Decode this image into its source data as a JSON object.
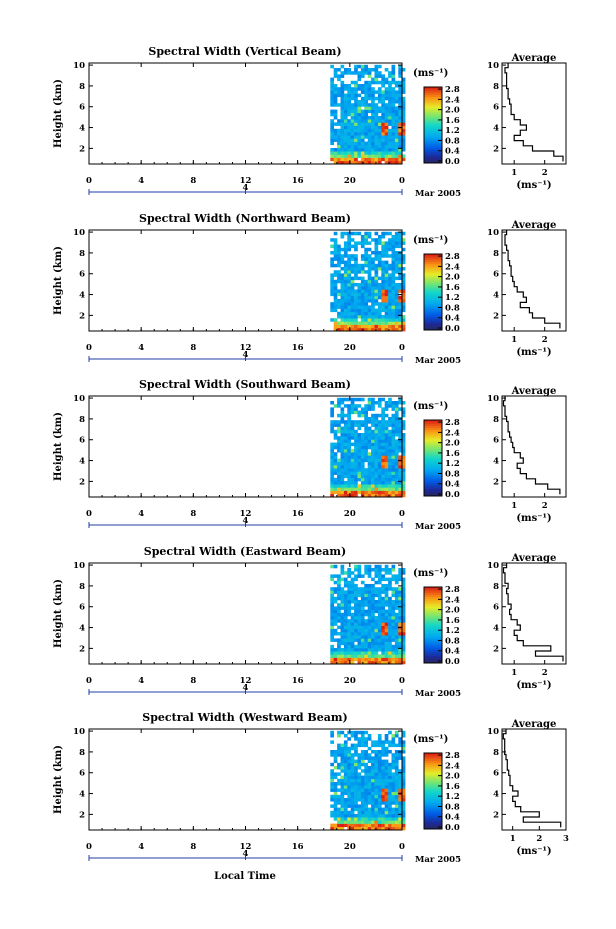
{
  "figure": {
    "xlabel": "Local Time",
    "date_label": "Mar 2005",
    "day_marker": "4",
    "x_ticks": [
      "0",
      "4",
      "8",
      "12",
      "16",
      "20",
      "0"
    ],
    "ylabel": "Height (km)",
    "y_ticks": [
      "2",
      "4",
      "6",
      "8",
      "10"
    ],
    "colorbar_unit": "(ms⁻¹)",
    "colorbar_ticks": [
      "0.0",
      "0.4",
      "0.8",
      "1.2",
      "1.6",
      "2.0",
      "2.4",
      "2.8"
    ],
    "profile_title": "Average",
    "profile_xlabel": "(ms⁻¹)",
    "colors": {
      "axis": "#000000",
      "day_marker": "#1f3fa8",
      "missing": "#ffffff"
    }
  },
  "chart_data": [
    {
      "type": "heatmap",
      "title": "Spectral Width (Vertical Beam)",
      "x_range_hours": [
        0,
        24
      ],
      "data_start_hour": 18.5,
      "y_range_km": [
        0.5,
        10.2
      ],
      "color_range": [
        0,
        2.8
      ],
      "profile": {
        "type": "line",
        "title": "Average",
        "x_ticks": [
          "1",
          "2"
        ],
        "xlim": [
          0.6,
          2.7
        ],
        "heights_km": [
          1.0,
          1.5,
          2.0,
          2.5,
          3.0,
          3.5,
          4.0,
          4.5,
          5.0,
          5.5,
          6.0,
          6.5,
          7.0,
          7.5,
          8.0,
          8.5,
          9.0,
          9.5,
          10.0
        ],
        "values": [
          2.6,
          2.3,
          1.6,
          1.3,
          1.0,
          1.2,
          1.4,
          1.2,
          1.0,
          0.9,
          0.9,
          0.85,
          0.8,
          0.8,
          0.75,
          0.75,
          0.75,
          0.7,
          0.8
        ]
      }
    },
    {
      "type": "heatmap",
      "title": "Spectral Width (Northward Beam)",
      "x_range_hours": [
        0,
        24
      ],
      "data_start_hour": 18.5,
      "y_range_km": [
        0.5,
        10.2
      ],
      "color_range": [
        0,
        2.8
      ],
      "profile": {
        "type": "line",
        "title": "Average",
        "x_ticks": [
          "1",
          "2"
        ],
        "xlim": [
          0.6,
          2.7
        ],
        "heights_km": [
          1.0,
          1.5,
          2.0,
          2.5,
          3.0,
          3.5,
          4.0,
          4.5,
          5.0,
          5.5,
          6.0,
          6.5,
          7.0,
          7.5,
          8.0,
          8.5,
          9.0,
          9.5,
          10.0
        ],
        "values": [
          2.5,
          2.0,
          1.6,
          1.5,
          1.2,
          1.4,
          1.3,
          1.1,
          1.0,
          0.95,
          0.9,
          0.9,
          0.85,
          0.8,
          0.8,
          0.75,
          0.7,
          0.7,
          0.75
        ]
      }
    },
    {
      "type": "heatmap",
      "title": "Spectral Width (Southward Beam)",
      "x_range_hours": [
        0,
        24
      ],
      "data_start_hour": 18.5,
      "y_range_km": [
        0.5,
        10.2
      ],
      "color_range": [
        0,
        2.8
      ],
      "profile": {
        "type": "line",
        "title": "Average",
        "x_ticks": [
          "1",
          "2"
        ],
        "xlim": [
          0.6,
          2.7
        ],
        "heights_km": [
          1.0,
          1.5,
          2.0,
          2.5,
          3.0,
          3.5,
          4.0,
          4.5,
          5.0,
          5.5,
          6.0,
          6.5,
          7.0,
          7.5,
          8.0,
          8.5,
          9.0,
          9.5,
          10.0
        ],
        "values": [
          2.5,
          2.1,
          1.7,
          1.4,
          1.2,
          1.1,
          1.3,
          1.2,
          1.0,
          0.95,
          0.9,
          0.85,
          0.8,
          0.8,
          0.75,
          0.7,
          0.7,
          0.65,
          0.7
        ]
      }
    },
    {
      "type": "heatmap",
      "title": "Spectral Width (Eastward Beam)",
      "x_range_hours": [
        0,
        24
      ],
      "data_start_hour": 18.5,
      "y_range_km": [
        0.5,
        10.2
      ],
      "color_range": [
        0,
        2.8
      ],
      "profile": {
        "type": "line",
        "title": "Average",
        "x_ticks": [
          "1",
          "2"
        ],
        "xlim": [
          0.6,
          2.7
        ],
        "heights_km": [
          1.0,
          1.5,
          2.0,
          2.5,
          3.0,
          3.5,
          4.0,
          4.5,
          5.0,
          5.5,
          6.0,
          6.5,
          7.0,
          7.5,
          8.0,
          8.5,
          9.0,
          9.5,
          10.0
        ],
        "values": [
          2.6,
          1.7,
          2.2,
          1.3,
          1.1,
          1.0,
          1.2,
          1.1,
          0.9,
          0.85,
          0.9,
          0.8,
          0.8,
          0.75,
          0.8,
          0.7,
          0.7,
          0.65,
          0.75
        ]
      }
    },
    {
      "type": "heatmap",
      "title": "Spectral Width (Westward Beam)",
      "x_range_hours": [
        0,
        24
      ],
      "data_start_hour": 18.5,
      "y_range_km": [
        0.5,
        10.2
      ],
      "color_range": [
        0,
        2.8
      ],
      "profile": {
        "type": "line",
        "title": "Average",
        "x_ticks": [
          "1",
          "2",
          "3"
        ],
        "xlim": [
          0.6,
          3.0
        ],
        "heights_km": [
          1.0,
          1.5,
          2.0,
          2.5,
          3.0,
          3.5,
          4.0,
          4.5,
          5.0,
          5.5,
          6.0,
          6.5,
          7.0,
          7.5,
          8.0,
          8.5,
          9.0,
          9.5,
          10.0
        ],
        "values": [
          2.8,
          1.4,
          2.0,
          1.3,
          1.1,
          1.0,
          1.2,
          1.0,
          0.9,
          0.9,
          0.85,
          0.8,
          0.8,
          0.75,
          0.7,
          0.7,
          0.7,
          0.65,
          0.75
        ]
      }
    }
  ]
}
